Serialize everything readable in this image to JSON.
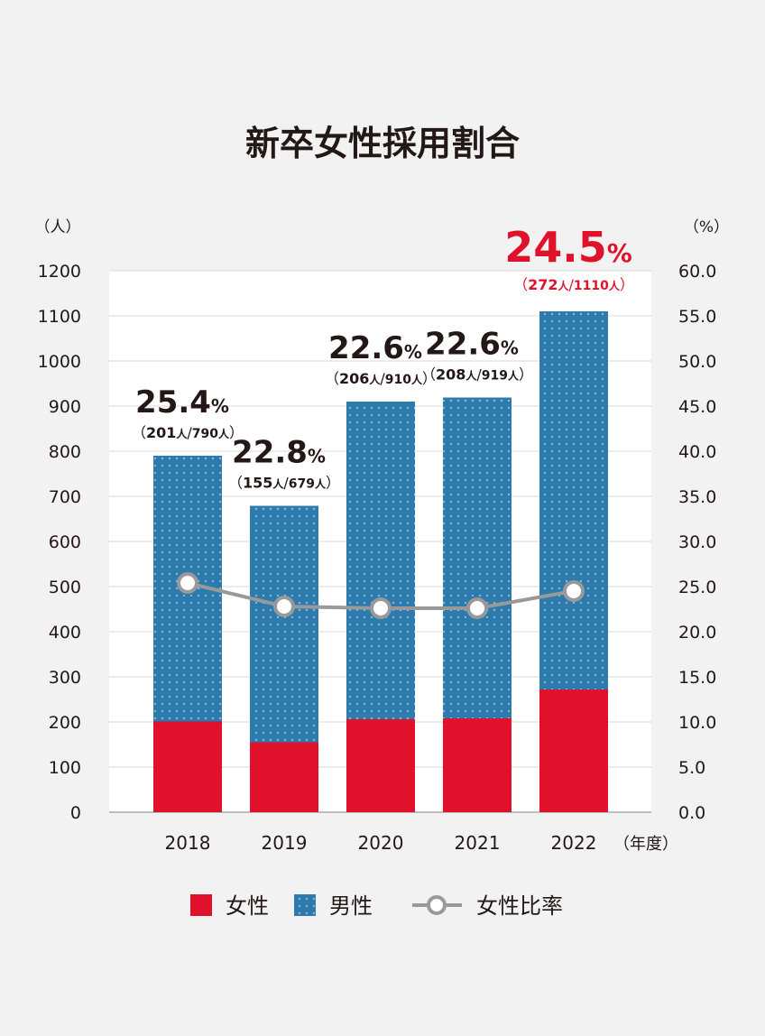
{
  "chart_data": {
    "type": "bar",
    "title": "新卒女性採用割合",
    "categories": [
      "2018",
      "2019",
      "2020",
      "2021",
      "2022"
    ],
    "series": [
      {
        "name": "女性",
        "values": [
          201,
          155,
          206,
          208,
          272
        ],
        "color": "#e0112b"
      },
      {
        "name": "男性",
        "values": [
          589,
          524,
          704,
          711,
          838
        ],
        "color": "#2d7aac"
      },
      {
        "name": "女性比率",
        "values": [
          25.4,
          22.8,
          22.6,
          22.6,
          24.5
        ],
        "color": "#999999",
        "axis": "right",
        "type": "line"
      }
    ],
    "totals": [
      790,
      679,
      910,
      919,
      1110
    ],
    "rate_labels": [
      "25.4",
      "22.8",
      "22.6",
      "22.6",
      "24.5"
    ],
    "rate_unit": "%",
    "count_labels": [
      {
        "female": "201",
        "total": "790"
      },
      {
        "female": "155",
        "total": "679"
      },
      {
        "female": "206",
        "total": "910"
      },
      {
        "female": "208",
        "total": "919"
      },
      {
        "female": "272",
        "total": "1110"
      }
    ],
    "person_unit": "人",
    "highlight_index": 4,
    "highlight_color": "#e0112b",
    "left_axis": {
      "unit_label": "（人）",
      "ylim": [
        0,
        1200
      ],
      "ticks": [
        "0",
        "100",
        "200",
        "300",
        "400",
        "500",
        "600",
        "700",
        "800",
        "900",
        "1000",
        "1100",
        "1200"
      ]
    },
    "right_axis": {
      "unit_label": "（%）",
      "ylim": [
        0,
        60
      ],
      "ticks": [
        "0.0",
        "5.0",
        "10.0",
        "15.0",
        "20.0",
        "25.0",
        "30.0",
        "35.0",
        "40.0",
        "45.0",
        "50.0",
        "55.0",
        "60.0"
      ]
    },
    "x_unit_label": "（年度）",
    "grid": true,
    "legend": {
      "position": "bottom",
      "items": [
        {
          "label": "女性",
          "kind": "solid"
        },
        {
          "label": "男性",
          "kind": "dotted"
        },
        {
          "label": "女性比率",
          "kind": "line"
        }
      ]
    }
  }
}
